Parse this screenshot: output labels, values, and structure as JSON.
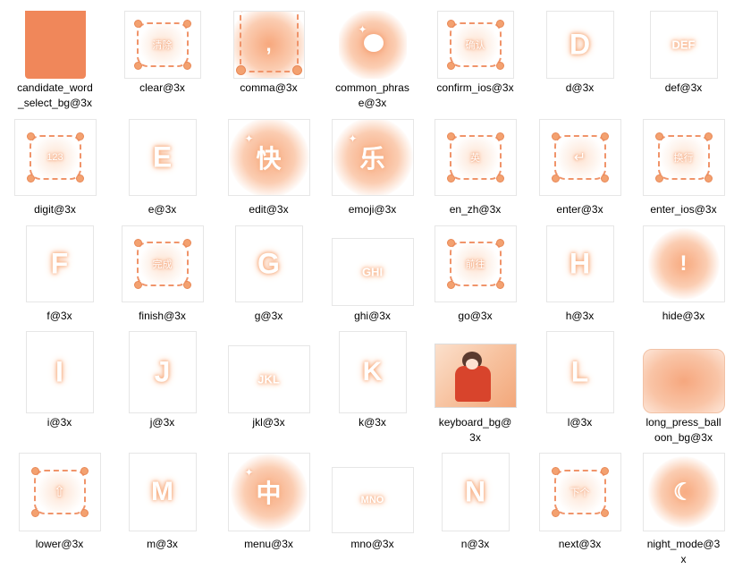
{
  "files": [
    {
      "caption": "candidate_word\n_select_bg@3x"
    },
    {
      "caption": "clear@3x",
      "label": "清除"
    },
    {
      "caption": "comma@3x",
      "label": ","
    },
    {
      "caption": "common_phras\ne@3x"
    },
    {
      "caption": "confirm_ios@3x",
      "label": "确认"
    },
    {
      "caption": "d@3x",
      "label": "D"
    },
    {
      "caption": "def@3x",
      "label": "DEF"
    },
    {
      "caption": "digit@3x",
      "label": "123"
    },
    {
      "caption": "e@3x",
      "label": "E"
    },
    {
      "caption": "edit@3x",
      "label": "快"
    },
    {
      "caption": "emoji@3x",
      "label": "乐"
    },
    {
      "caption": "en_zh@3x",
      "label": "英"
    },
    {
      "caption": "enter@3x",
      "label": "↵"
    },
    {
      "caption": "enter_ios@3x",
      "label": "换行"
    },
    {
      "caption": "f@3x",
      "label": "F"
    },
    {
      "caption": "finish@3x",
      "label": "完成"
    },
    {
      "caption": "g@3x",
      "label": "G"
    },
    {
      "caption": "ghi@3x",
      "label": "GHI"
    },
    {
      "caption": "go@3x",
      "label": "前往"
    },
    {
      "caption": "h@3x",
      "label": "H"
    },
    {
      "caption": "hide@3x",
      "label": "!"
    },
    {
      "caption": "i@3x",
      "label": "I"
    },
    {
      "caption": "j@3x",
      "label": "J"
    },
    {
      "caption": "jkl@3x",
      "label": "JKL"
    },
    {
      "caption": "k@3x",
      "label": "K"
    },
    {
      "caption": "keyboard_bg@\n3x"
    },
    {
      "caption": "l@3x",
      "label": "L"
    },
    {
      "caption": "long_press_ball\noon_bg@3x"
    },
    {
      "caption": "lower@3x",
      "label": "⇧"
    },
    {
      "caption": "m@3x",
      "label": "M"
    },
    {
      "caption": "menu@3x",
      "label": "中"
    },
    {
      "caption": "mno@3x",
      "label": "MNO"
    },
    {
      "caption": "n@3x",
      "label": "N"
    },
    {
      "caption": "next@3x",
      "label": "下个"
    },
    {
      "caption": "night_mode@3\nx",
      "label": "☾"
    }
  ],
  "colors": {
    "accent": "#f08a5d",
    "glow": "#f7a77c"
  }
}
